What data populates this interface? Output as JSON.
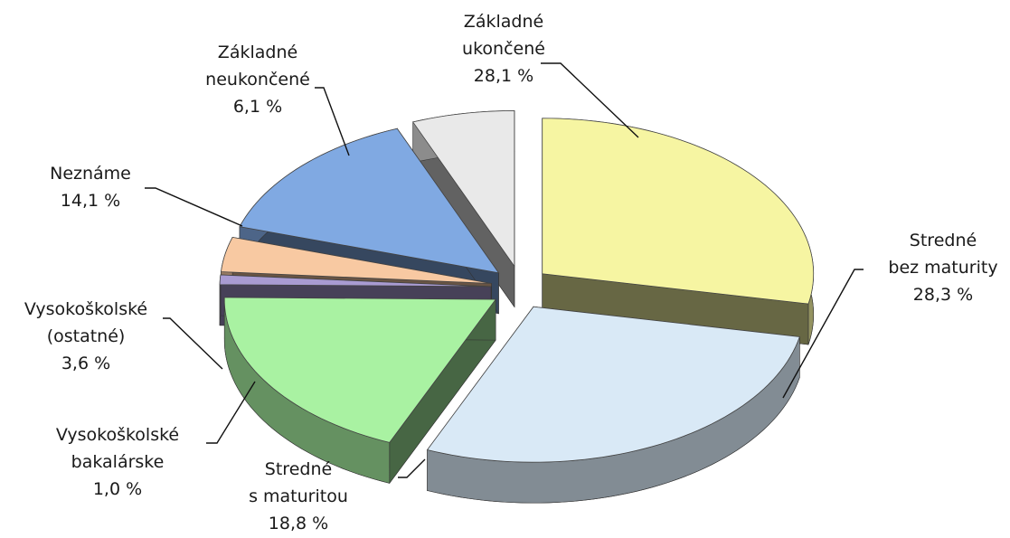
{
  "chart_data": {
    "type": "pie3d",
    "categories": [
      "Základné ukončené",
      "Stredné bez maturity",
      "Stredné s maturitou",
      "Vysokoškolské bakalárske",
      "Vysokoškolské (ostatné)",
      "Neznáme",
      "Základné neukončené"
    ],
    "values": [
      28.1,
      28.3,
      18.8,
      1.0,
      3.6,
      14.1,
      6.1
    ],
    "value_labels": [
      "28,1 %",
      "28,3 %",
      "18,8 %",
      "1,0 %",
      "3,6 %",
      "14,1 %",
      "6,1 %"
    ],
    "colors": [
      "#f6f5a2",
      "#d9e9f6",
      "#a9f2a2",
      "#a99bd2",
      "#f8c9a2",
      "#80a9e2",
      "#e9e9e9"
    ]
  }
}
